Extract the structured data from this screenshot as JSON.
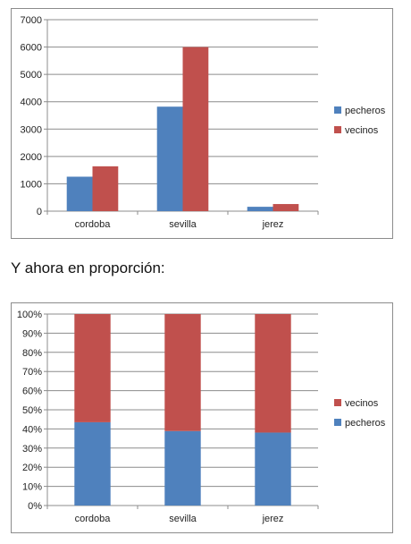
{
  "caption": "Y ahora en proporción:",
  "chart_data": [
    {
      "type": "bar",
      "categories": [
        "cordoba",
        "sevilla",
        "jerez"
      ],
      "series": [
        {
          "name": "pecheros",
          "color": "#4f81bd",
          "values": [
            1260,
            3820,
            160
          ]
        },
        {
          "name": "vecinos",
          "color": "#c0504d",
          "values": [
            1640,
            6000,
            260
          ]
        }
      ],
      "ylim": [
        0,
        7000
      ],
      "yticks": [
        "0",
        "1000",
        "2000",
        "3000",
        "4000",
        "5000",
        "6000",
        "7000"
      ],
      "grid": true,
      "legend": "right"
    },
    {
      "type": "bar",
      "stacked": "percent",
      "categories": [
        "cordoba",
        "sevilla",
        "jerez"
      ],
      "series": [
        {
          "name": "pecheros",
          "color": "#4f81bd",
          "values": [
            43.5,
            38.9,
            38.1
          ]
        },
        {
          "name": "vecinos",
          "color": "#c0504d",
          "values": [
            56.5,
            61.1,
            61.9
          ]
        }
      ],
      "ylim": [
        0,
        100
      ],
      "yticks": [
        "0%",
        "10%",
        "20%",
        "30%",
        "40%",
        "50%",
        "60%",
        "70%",
        "80%",
        "90%",
        "100%"
      ],
      "grid": true,
      "legend": "right",
      "legend_order": [
        "vecinos",
        "pecheros"
      ]
    }
  ]
}
